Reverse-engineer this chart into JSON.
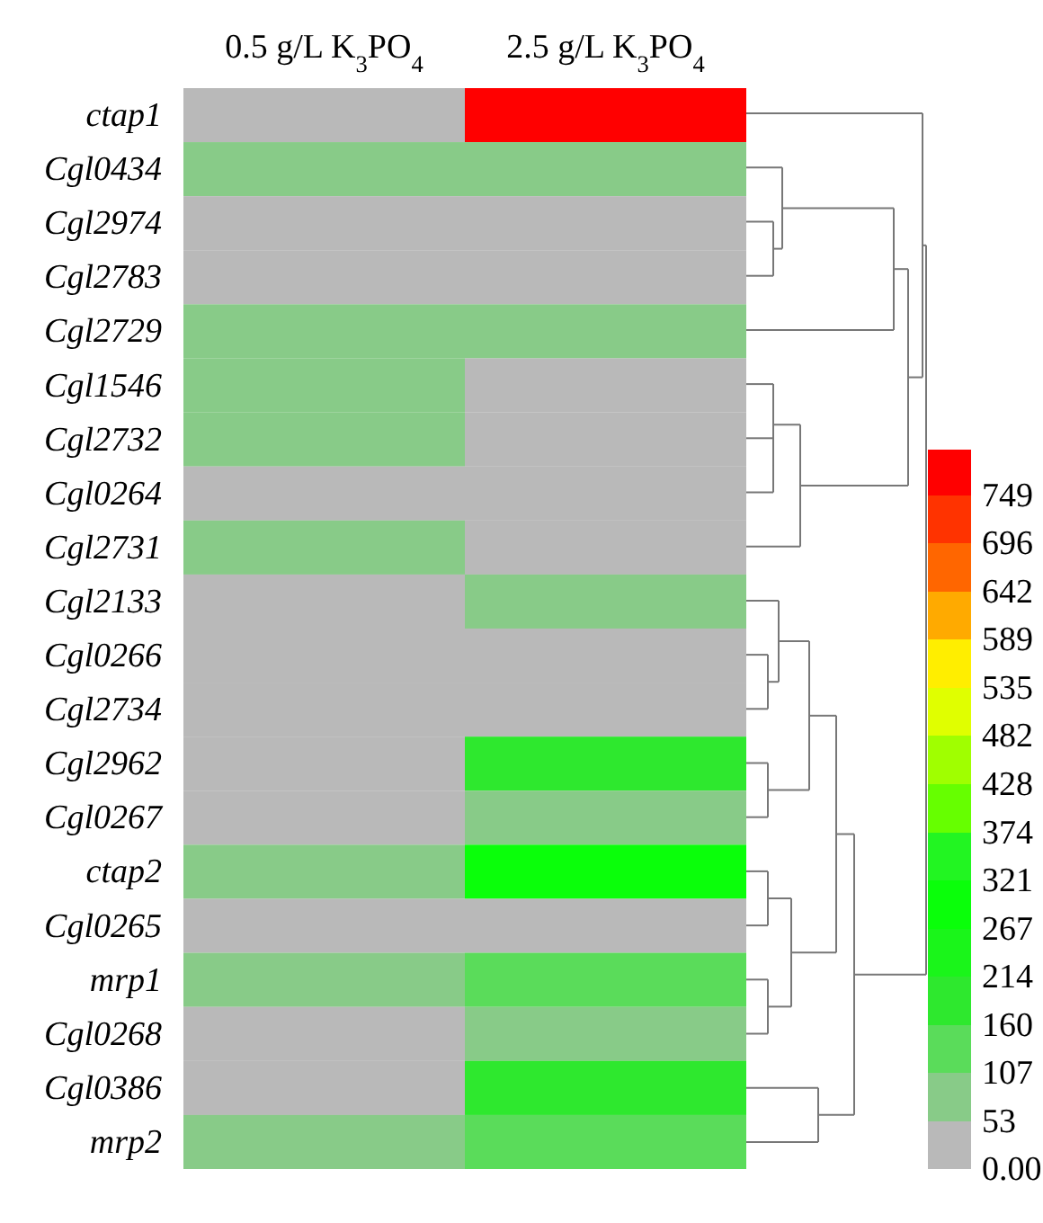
{
  "chart_data": {
    "type": "heatmap",
    "categories": [
      "0.5 g/L K$_{3}$PO$_{4}$",
      "2.5 g/L K$_{3}$PO$_{4}$"
    ],
    "y_categories": [
      "ctap1",
      "Cgl0434",
      "Cgl2974",
      "Cgl2783",
      "Cgl2729",
      "Cgl1546",
      "Cgl2732",
      "Cgl0264",
      "Cgl2731",
      "Cgl2133",
      "Cgl0266",
      "Cgl2734",
      "Cgl2962",
      "Cgl0267",
      "ctap2",
      "Cgl0265",
      "mrp1",
      "Cgl0268",
      "Cgl0386",
      "mrp2"
    ],
    "cells": [
      [
        0,
        775
      ],
      [
        80,
        80
      ],
      [
        0,
        0
      ],
      [
        0,
        0
      ],
      [
        80,
        80
      ],
      [
        80,
        0
      ],
      [
        80,
        0
      ],
      [
        0,
        0
      ],
      [
        80,
        0
      ],
      [
        0,
        80
      ],
      [
        0,
        0
      ],
      [
        0,
        0
      ],
      [
        0,
        190
      ],
      [
        0,
        80
      ],
      [
        80,
        290
      ],
      [
        0,
        0
      ],
      [
        80,
        130
      ],
      [
        0,
        80
      ],
      [
        0,
        190
      ],
      [
        80,
        130
      ]
    ],
    "clim": [
      0,
      800
    ],
    "cticks": [
      {
        "value": 0,
        "label": "0.00"
      },
      53,
      107,
      160,
      214,
      267,
      321,
      374,
      428,
      482,
      535,
      589,
      642,
      696,
      749
    ]
  }
}
